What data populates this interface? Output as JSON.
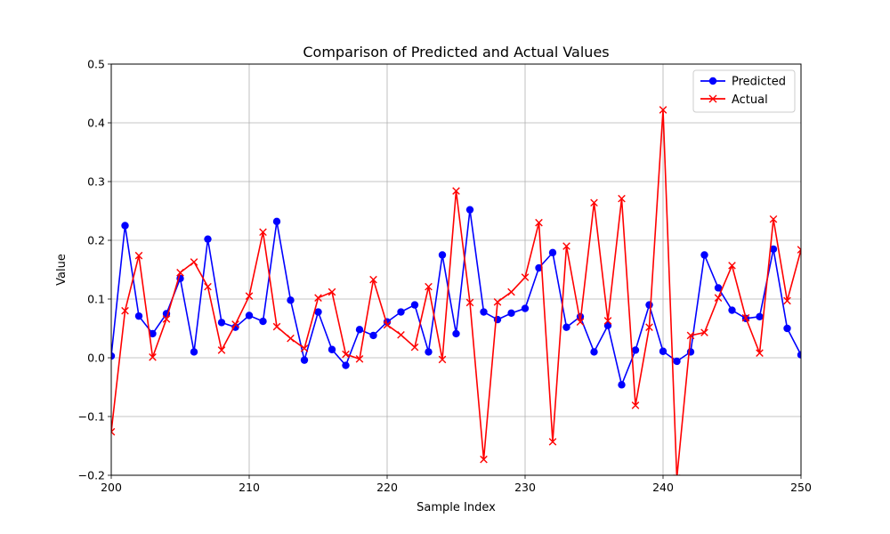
{
  "chart_data": {
    "type": "line",
    "title": "Comparison of Predicted and Actual Values",
    "xlabel": "Sample Index",
    "ylabel": "Value",
    "xlim": [
      200,
      250
    ],
    "ylim": [
      -0.2,
      0.5
    ],
    "grid": true,
    "legend_position": "top-right",
    "x_ticks": [
      200,
      210,
      220,
      230,
      240,
      250
    ],
    "y_ticks": [
      -0.2,
      -0.1,
      0.0,
      0.1,
      0.2,
      0.3,
      0.4,
      0.5
    ],
    "x_tick_labels": [
      "200",
      "210",
      "220",
      "230",
      "240",
      "250"
    ],
    "y_tick_labels": [
      "−0.2",
      "−0.1",
      "0.0",
      "0.1",
      "0.2",
      "0.3",
      "0.4",
      "0.5"
    ],
    "x": [
      200,
      201,
      202,
      203,
      204,
      205,
      206,
      207,
      208,
      209,
      210,
      211,
      212,
      213,
      214,
      215,
      216,
      217,
      218,
      219,
      220,
      221,
      222,
      223,
      224,
      225,
      226,
      227,
      228,
      229,
      230,
      231,
      232,
      233,
      234,
      235,
      236,
      237,
      238,
      239,
      240,
      241,
      242,
      243,
      244,
      245,
      246,
      247,
      248,
      249,
      250
    ],
    "series": [
      {
        "name": "Predicted",
        "color": "#0000ff",
        "marker": "circle",
        "values": [
          0.003,
          0.225,
          0.071,
          0.041,
          0.075,
          0.135,
          0.01,
          0.202,
          0.06,
          0.052,
          0.072,
          0.062,
          0.232,
          0.098,
          -0.004,
          0.078,
          0.014,
          -0.013,
          0.048,
          0.038,
          0.061,
          0.078,
          0.09,
          0.01,
          0.175,
          0.041,
          0.252,
          0.078,
          0.065,
          0.076,
          0.084,
          0.153,
          0.179,
          0.052,
          0.07,
          0.01,
          0.055,
          -0.046,
          0.013,
          0.09,
          0.011,
          -0.006,
          0.01,
          0.175,
          0.119,
          0.081,
          0.067,
          0.07,
          0.185,
          0.05,
          0.005
        ]
      },
      {
        "name": "Actual",
        "color": "#ff0000",
        "marker": "x",
        "values": [
          -0.126,
          0.08,
          0.174,
          0.001,
          0.066,
          0.145,
          0.163,
          0.121,
          0.013,
          0.057,
          0.105,
          0.214,
          0.053,
          0.033,
          0.016,
          0.102,
          0.112,
          0.006,
          -0.002,
          0.133,
          0.056,
          0.039,
          0.018,
          0.121,
          -0.003,
          0.284,
          0.094,
          -0.173,
          0.095,
          0.112,
          0.137,
          0.23,
          -0.143,
          0.19,
          0.061,
          0.264,
          0.063,
          0.271,
          -0.081,
          0.052,
          0.422,
          -0.205,
          0.038,
          0.043,
          0.102,
          0.157,
          0.068,
          0.008,
          0.236,
          0.097,
          0.184
        ]
      }
    ]
  }
}
